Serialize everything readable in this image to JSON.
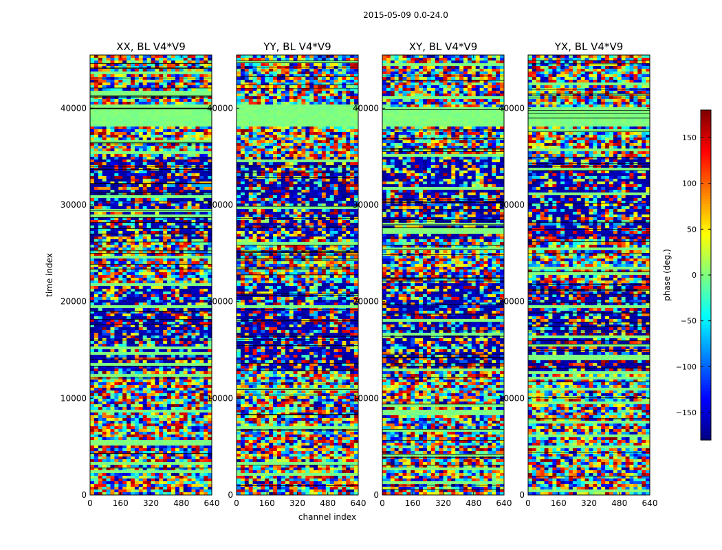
{
  "chart_data": {
    "type": "heatmap",
    "suptitle": "2015-05-09 0.0-24.0",
    "xlabel": "channel index",
    "ylabel": "time index",
    "xlim": [
      0,
      640
    ],
    "ylim": [
      0,
      45500
    ],
    "x_ticks": [
      0,
      160,
      320,
      480,
      640
    ],
    "x_tick_labels": [
      "0",
      "160",
      "320",
      "480",
      "640"
    ],
    "y_ticks": [
      0,
      10000,
      20000,
      30000,
      40000
    ],
    "y_tick_labels": [
      "0",
      "10000",
      "20000",
      "30000",
      "40000"
    ],
    "panels": [
      {
        "name": "XX",
        "title": "XX, BL V4*V9"
      },
      {
        "name": "YY",
        "title": "YY, BL V4*V9"
      },
      {
        "name": "XY",
        "title": "XY, BL V4*V9"
      },
      {
        "name": "YX",
        "title": "YX, BL V4*V9"
      }
    ],
    "colorbar": {
      "label": "phase (deg.)",
      "colormap": "jet",
      "vmin": -180,
      "vmax": 180,
      "ticks": [
        -150,
        -100,
        -50,
        0,
        50,
        100,
        150
      ],
      "tick_labels": [
        "−150",
        "−100",
        "−50",
        "0",
        "50",
        "100",
        "150"
      ]
    },
    "flagged_time_ranges": [
      [
        38000,
        40000
      ]
    ],
    "flagged_value_deg": 0,
    "region_character": [
      {
        "range": [
          0,
          12800
        ],
        "style": "noisy phase"
      },
      {
        "range": [
          12800,
          22000
        ],
        "style": "coherent bands"
      },
      {
        "range": [
          22000,
          26500
        ],
        "style": "noisy phase"
      },
      {
        "range": [
          26500,
          35000
        ],
        "style": "coherent bands"
      },
      {
        "range": [
          35000,
          45500
        ],
        "style": "noisy phase"
      }
    ],
    "grid": false
  }
}
